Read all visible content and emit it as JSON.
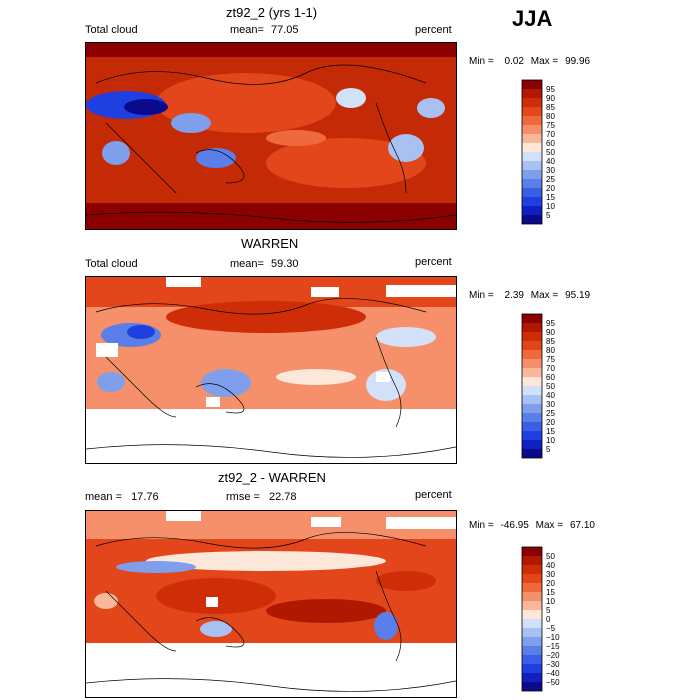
{
  "season": "JJA",
  "colors": {
    "dark_red": "#8b0000",
    "red": "#d93a10",
    "orange": "#ee6a3c",
    "salmon": "#f5a282",
    "cream": "#fde7d9",
    "pale_blue": "#d2e0f8",
    "mid_blue": "#6d8ee8",
    "blue": "#1f3fe0",
    "navy": "#0a0a8a"
  },
  "panels": [
    {
      "title": "zt92_2 (yrs 1-1)",
      "left_label": "Total cloud",
      "stat_label": "mean=",
      "stat_value": "77.05",
      "units": "percent",
      "min_label": "Min =",
      "min_value": "0.02",
      "max_label": "Max =",
      "max_value": "99.96",
      "colorbar": {
        "levels": [
          "95",
          "90",
          "85",
          "80",
          "75",
          "70",
          "60",
          "50",
          "40",
          "30",
          "25",
          "20",
          "15",
          "10",
          "5"
        ],
        "colors": [
          "#8b0000",
          "#b01800",
          "#cf2d08",
          "#e2461a",
          "#ee6a3c",
          "#f5906a",
          "#f9b89a",
          "#fde7d9",
          "#d2e0f8",
          "#a9c0f2",
          "#7f9fec",
          "#5a7fe8",
          "#3a5fe4",
          "#1f3fe0",
          "#1020c0",
          "#0a0a8a"
        ]
      }
    },
    {
      "title": "WARREN",
      "left_label": "Total cloud",
      "stat_label": "mean=",
      "stat_value": "59.30",
      "units": "percent",
      "min_label": "Min =",
      "min_value": "2.39",
      "max_label": "Max =",
      "max_value": "95.19",
      "colorbar": {
        "levels": [
          "95",
          "90",
          "85",
          "80",
          "75",
          "70",
          "60",
          "50",
          "40",
          "30",
          "25",
          "20",
          "15",
          "10",
          "5"
        ],
        "colors": [
          "#8b0000",
          "#b01800",
          "#cf2d08",
          "#e2461a",
          "#ee6a3c",
          "#f5906a",
          "#f9b89a",
          "#fde7d9",
          "#d2e0f8",
          "#a9c0f2",
          "#7f9fec",
          "#5a7fe8",
          "#3a5fe4",
          "#1f3fe0",
          "#1020c0",
          "#0a0a8a"
        ]
      }
    },
    {
      "title": "zt92_2 - WARREN",
      "left_label": "mean =",
      "left_value": "17.76",
      "stat_label": "rmse =",
      "stat_value": "22.78",
      "units": "percent",
      "min_label": "Min =",
      "min_value": "-46.95",
      "max_label": "Max =",
      "max_value": "67.10",
      "colorbar": {
        "levels": [
          "50",
          "40",
          "30",
          "20",
          "15",
          "10",
          "5",
          "0",
          "−5",
          "−10",
          "−15",
          "−20",
          "−30",
          "−40",
          "−50"
        ],
        "colors": [
          "#8b0000",
          "#b01800",
          "#cf2d08",
          "#e2461a",
          "#ee6a3c",
          "#f5906a",
          "#f9b89a",
          "#fde7d9",
          "#d2e0f8",
          "#a9c0f2",
          "#7f9fec",
          "#5a7fe8",
          "#3a5fe4",
          "#1f3fe0",
          "#1020c0",
          "#0a0a8a"
        ]
      }
    }
  ],
  "chart_data": [
    {
      "type": "heatmap",
      "title": "zt92_2 (yrs 1-1)",
      "variable": "Total cloud",
      "units": "percent",
      "mean": 77.05,
      "min": 0.02,
      "max": 99.96,
      "contour_levels": [
        5,
        10,
        15,
        20,
        25,
        30,
        40,
        50,
        60,
        70,
        75,
        80,
        85,
        90,
        95
      ]
    },
    {
      "type": "heatmap",
      "title": "WARREN",
      "variable": "Total cloud",
      "units": "percent",
      "mean": 59.3,
      "min": 2.39,
      "max": 95.19,
      "contour_levels": [
        5,
        10,
        15,
        20,
        25,
        30,
        40,
        50,
        60,
        70,
        75,
        80,
        85,
        90,
        95
      ]
    },
    {
      "type": "heatmap",
      "title": "zt92_2 - WARREN",
      "units": "percent",
      "mean": 17.76,
      "rmse": 22.78,
      "min": -46.95,
      "max": 67.1,
      "contour_levels": [
        -50,
        -40,
        -30,
        -20,
        -15,
        -10,
        -5,
        0,
        5,
        10,
        15,
        20,
        30,
        40,
        50
      ]
    }
  ]
}
